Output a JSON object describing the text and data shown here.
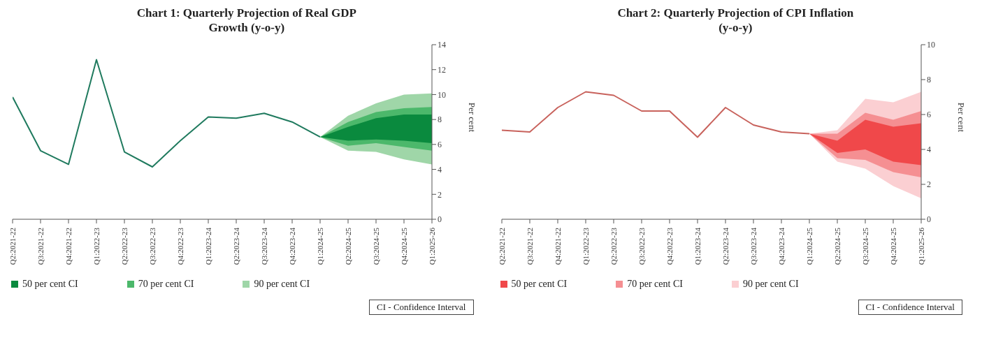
{
  "chart_data": [
    {
      "type": "line",
      "title": "Chart 1: Quarterly Projection of Real GDP Growth (y-o-y)",
      "ylabel": "Per cent",
      "categories": [
        "Q2:2021-22",
        "Q3:2021-22",
        "Q4:2021-22",
        "Q1:2022-23",
        "Q2:2022-23",
        "Q3:2022-23",
        "Q4:2022-23",
        "Q1:2023-24",
        "Q2:2023-24",
        "Q3:2023-24",
        "Q4:2023-24",
        "Q1:2024-25",
        "Q2:2024-25",
        "Q3:2024-25",
        "Q4:2024-25",
        "Q1:2025-26"
      ],
      "series": [
        {
          "color": "#1f7a5e",
          "values": [
            9.8,
            5.5,
            4.4,
            12.8,
            5.4,
            4.2,
            6.3,
            8.2,
            8.1,
            8.5,
            7.8,
            6.6,
            null,
            null,
            null,
            null
          ]
        },
        {
          "name": "50 per cent CI",
          "type": "area",
          "color": "#0a8a3e",
          "values": [
            null,
            null,
            null,
            null,
            null,
            null,
            null,
            null,
            null,
            null,
            null,
            null,
            null,
            null,
            null,
            null
          ],
          "lower": [
            null,
            null,
            null,
            null,
            null,
            null,
            null,
            null,
            null,
            null,
            null,
            6.6,
            6.3,
            6.4,
            6.3,
            6.1
          ],
          "upper": [
            null,
            null,
            null,
            null,
            null,
            null,
            null,
            null,
            null,
            null,
            null,
            6.6,
            7.4,
            8.1,
            8.4,
            8.4
          ]
        },
        {
          "name": "70 per cent CI",
          "type": "area",
          "color": "#4cb86b",
          "values": [
            null,
            null,
            null,
            null,
            null,
            null,
            null,
            null,
            null,
            null,
            null,
            null,
            null,
            null,
            null,
            null
          ],
          "lower": [
            null,
            null,
            null,
            null,
            null,
            null,
            null,
            null,
            null,
            null,
            null,
            6.6,
            5.9,
            6.1,
            5.8,
            5.5
          ],
          "upper": [
            null,
            null,
            null,
            null,
            null,
            null,
            null,
            null,
            null,
            null,
            null,
            6.6,
            7.8,
            8.6,
            8.9,
            9.0
          ]
        },
        {
          "name": "90 per cent CI",
          "type": "area",
          "color": "#9fd6a8",
          "values": [
            null,
            null,
            null,
            null,
            null,
            null,
            null,
            null,
            null,
            null,
            null,
            null,
            null,
            null,
            null,
            null
          ],
          "lower": [
            null,
            null,
            null,
            null,
            null,
            null,
            null,
            null,
            null,
            null,
            null,
            6.6,
            5.5,
            5.4,
            4.8,
            4.4
          ],
          "upper": [
            null,
            null,
            null,
            null,
            null,
            null,
            null,
            null,
            null,
            null,
            null,
            6.6,
            8.3,
            9.3,
            10.0,
            10.1
          ]
        }
      ],
      "ylim": [
        0,
        14
      ],
      "yticks": [
        0,
        2,
        4,
        6,
        8,
        10,
        12,
        14
      ],
      "grid": false,
      "legend": "bottom",
      "annotations": [
        "CI - Confidence Interval"
      ]
    },
    {
      "type": "line",
      "title": "Chart 2: Quarterly Projection of CPI Inflation (y-o-y)",
      "ylabel": "Per cent",
      "categories": [
        "Q2:2021-22",
        "Q3:2021-22",
        "Q4:2021-22",
        "Q1:2022-23",
        "Q2:2022-23",
        "Q3:2022-23",
        "Q4:2022-23",
        "Q1:2023-24",
        "Q2:2023-24",
        "Q3:2023-24",
        "Q4:2023-24",
        "Q1:2024-25",
        "Q2:2024-25",
        "Q3:2024-25",
        "Q4:2024-25",
        "Q1:2025-26"
      ],
      "series": [
        {
          "color": "#c8625c",
          "values": [
            5.1,
            5.0,
            6.4,
            7.3,
            7.1,
            6.2,
            6.2,
            4.7,
            6.4,
            5.4,
            5.0,
            4.9,
            null,
            null,
            null,
            null
          ]
        },
        {
          "name": "50 per cent CI",
          "type": "area",
          "color": "#f0484a",
          "values": [
            null,
            null,
            null,
            null,
            null,
            null,
            null,
            null,
            null,
            null,
            null,
            null,
            null,
            null,
            null,
            null
          ],
          "lower": [
            null,
            null,
            null,
            null,
            null,
            null,
            null,
            null,
            null,
            null,
            null,
            4.9,
            3.8,
            4.0,
            3.3,
            3.1
          ],
          "upper": [
            null,
            null,
            null,
            null,
            null,
            null,
            null,
            null,
            null,
            null,
            null,
            4.9,
            4.5,
            5.7,
            5.3,
            5.5
          ]
        },
        {
          "name": "70 per cent CI",
          "type": "area",
          "color": "#f58f92",
          "values": [
            null,
            null,
            null,
            null,
            null,
            null,
            null,
            null,
            null,
            null,
            null,
            null,
            null,
            null,
            null,
            null
          ],
          "lower": [
            null,
            null,
            null,
            null,
            null,
            null,
            null,
            null,
            null,
            null,
            null,
            4.9,
            3.5,
            3.4,
            2.7,
            2.4
          ],
          "upper": [
            null,
            null,
            null,
            null,
            null,
            null,
            null,
            null,
            null,
            null,
            null,
            4.9,
            4.9,
            6.1,
            5.7,
            6.2
          ]
        },
        {
          "name": "90 per cent CI",
          "type": "area",
          "color": "#fbcfd2",
          "values": [
            null,
            null,
            null,
            null,
            null,
            null,
            null,
            null,
            null,
            null,
            null,
            null,
            null,
            null,
            null,
            null
          ],
          "lower": [
            null,
            null,
            null,
            null,
            null,
            null,
            null,
            null,
            null,
            null,
            null,
            4.9,
            3.3,
            2.9,
            1.9,
            1.2
          ],
          "upper": [
            null,
            null,
            null,
            null,
            null,
            null,
            null,
            null,
            null,
            null,
            null,
            4.9,
            5.1,
            6.9,
            6.7,
            7.3
          ]
        }
      ],
      "ylim": [
        0,
        10
      ],
      "yticks": [
        0,
        2,
        4,
        6,
        8,
        10
      ],
      "grid": false,
      "legend": "bottom",
      "annotations": [
        "CI - Confidence Interval"
      ]
    }
  ]
}
